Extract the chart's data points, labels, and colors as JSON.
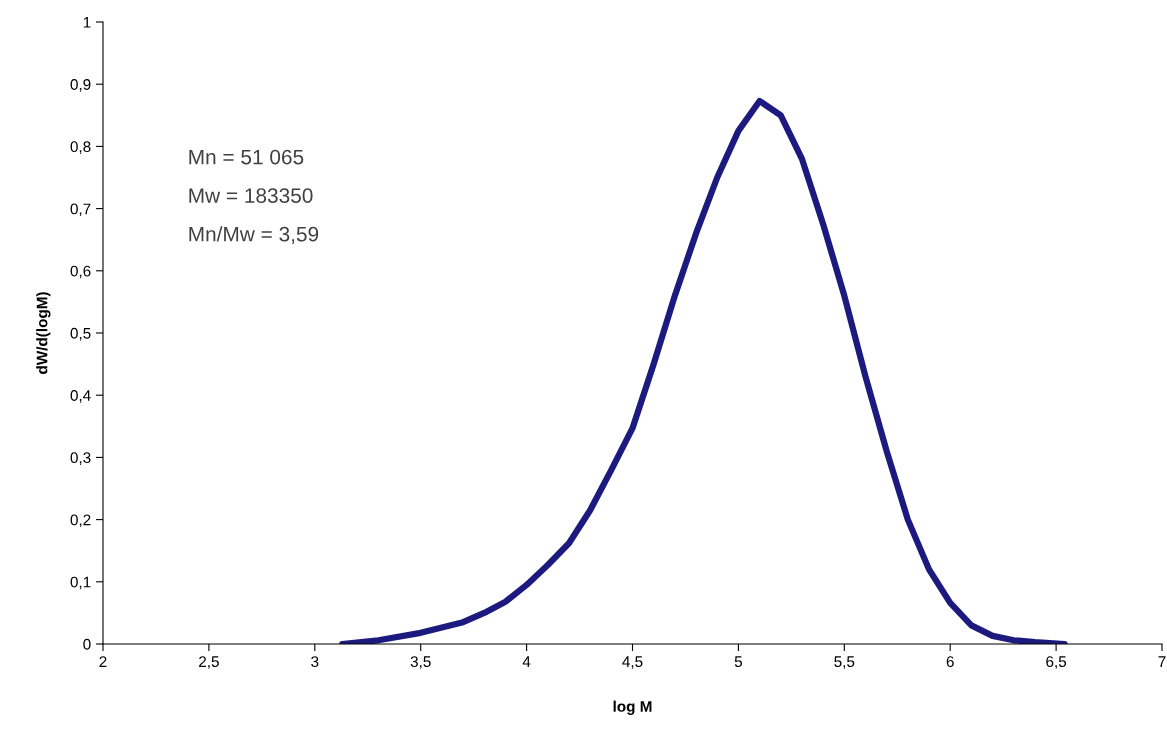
{
  "chart_data": {
    "type": "line",
    "xlabel": "log M",
    "ylabel": "dW/d(logM)",
    "xlim": [
      2,
      7
    ],
    "ylim": [
      0,
      1
    ],
    "xticks": [
      2,
      {
        "value": 2.5,
        "label": "2,5"
      },
      3,
      {
        "value": 3.5,
        "label": "3,5"
      },
      4,
      {
        "value": 4.5,
        "label": "4,5"
      },
      5,
      {
        "value": 5.5,
        "label": "5,5"
      },
      6,
      {
        "value": 6.5,
        "label": "6,5"
      },
      7
    ],
    "yticks": [
      0,
      {
        "value": 0.1,
        "label": "0,1"
      },
      {
        "value": 0.2,
        "label": "0,2"
      },
      {
        "value": 0.3,
        "label": "0,3"
      },
      {
        "value": 0.4,
        "label": "0,4"
      },
      {
        "value": 0.5,
        "label": "0,5"
      },
      {
        "value": 0.6,
        "label": "0,6"
      },
      {
        "value": 0.7,
        "label": "0,7"
      },
      {
        "value": 0.8,
        "label": "0,8"
      },
      {
        "value": 0.9,
        "label": "0,9"
      },
      1
    ],
    "grid": false,
    "legend": false,
    "marker": "none",
    "line_style": "solid",
    "annotations": [
      "Mn = 51 065",
      "Mw = 183350",
      "Mn/Mw = 3,59"
    ],
    "series": [
      {
        "color": "#1c1a7e",
        "x": [
          3.13,
          3.3,
          3.5,
          3.7,
          3.8,
          3.9,
          4.0,
          4.1,
          4.2,
          4.3,
          4.4,
          4.5,
          4.6,
          4.7,
          4.8,
          4.9,
          5.0,
          5.1,
          5.2,
          5.3,
          5.4,
          5.5,
          5.6,
          5.7,
          5.8,
          5.9,
          6.0,
          6.1,
          6.2,
          6.3,
          6.4,
          6.54
        ],
        "values": [
          0,
          0.006,
          0.018,
          0.035,
          0.05,
          0.068,
          0.095,
          0.127,
          0.162,
          0.215,
          0.28,
          0.347,
          0.45,
          0.56,
          0.66,
          0.75,
          0.825,
          0.873,
          0.85,
          0.78,
          0.675,
          0.56,
          0.43,
          0.31,
          0.2,
          0.12,
          0.066,
          0.03,
          0.013,
          0.006,
          0.003,
          0
        ]
      }
    ]
  }
}
